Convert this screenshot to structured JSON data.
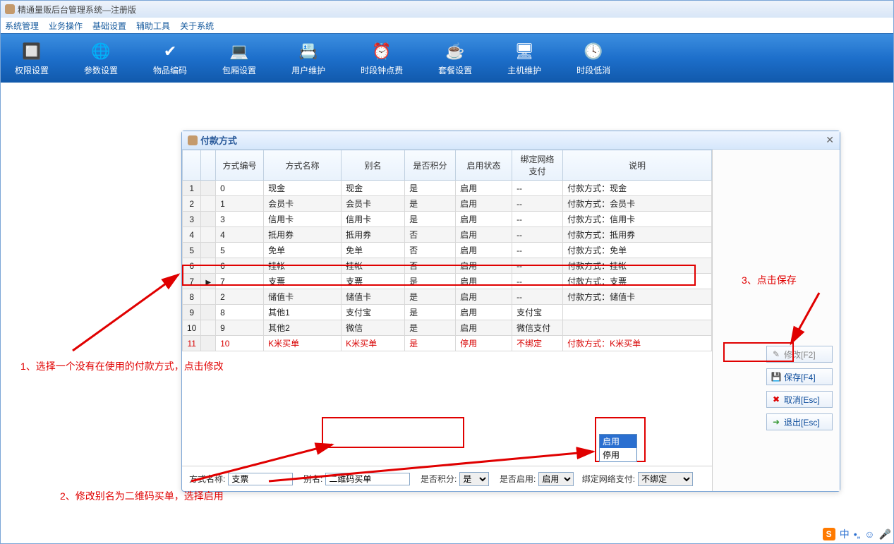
{
  "window": {
    "title": "精通量贩后台管理系统—注册版"
  },
  "menu": [
    "系统管理",
    "业务操作",
    "基础设置",
    "辅助工具",
    "关于系统"
  ],
  "toolbar": [
    {
      "label": "权限设置",
      "icon": "🔲",
      "name": "perm"
    },
    {
      "label": "参数设置",
      "icon": "🌐",
      "name": "param"
    },
    {
      "label": "物品编码",
      "icon": "✔",
      "name": "itemcode"
    },
    {
      "label": "包厢设置",
      "icon": "💻",
      "name": "room"
    },
    {
      "label": "用户维护",
      "icon": "📇",
      "name": "user"
    },
    {
      "label": "时段钟点费",
      "icon": "⏰",
      "name": "timefee"
    },
    {
      "label": "套餐设置",
      "icon": "☕",
      "name": "package"
    },
    {
      "label": "主机维护",
      "icon": "🖥",
      "name": "host"
    },
    {
      "label": "时段低消",
      "icon": "🕓",
      "name": "timemin"
    }
  ],
  "modal": {
    "title": "付款方式",
    "columns": [
      "方式编号",
      "方式名称",
      "别名",
      "是否积分",
      "启用状态",
      "绑定网络支付",
      "说明"
    ],
    "rows": [
      {
        "n": 1,
        "id": "0",
        "name": "现金",
        "alias": "现金",
        "jf": "是",
        "st": "启用",
        "net": "--",
        "desc": "付款方式：现金"
      },
      {
        "n": 2,
        "id": "1",
        "name": "会员卡",
        "alias": "会员卡",
        "jf": "是",
        "st": "启用",
        "net": "--",
        "desc": "付款方式：会员卡"
      },
      {
        "n": 3,
        "id": "3",
        "name": "信用卡",
        "alias": "信用卡",
        "jf": "是",
        "st": "启用",
        "net": "--",
        "desc": "付款方式：信用卡"
      },
      {
        "n": 4,
        "id": "4",
        "name": "抵用券",
        "alias": "抵用券",
        "jf": "否",
        "st": "启用",
        "net": "--",
        "desc": "付款方式：抵用券"
      },
      {
        "n": 5,
        "id": "5",
        "name": "免单",
        "alias": "免单",
        "jf": "否",
        "st": "启用",
        "net": "--",
        "desc": "付款方式：免单"
      },
      {
        "n": 6,
        "id": "6",
        "name": "挂帐",
        "alias": "挂帐",
        "jf": "否",
        "st": "启用",
        "net": "--",
        "desc": "付款方式：挂帐"
      },
      {
        "n": 7,
        "id": "7",
        "name": "支票",
        "alias": "支票",
        "jf": "是",
        "st": "启用",
        "net": "--",
        "desc": "付款方式：支票",
        "sel": true
      },
      {
        "n": 8,
        "id": "2",
        "name": "储值卡",
        "alias": "储值卡",
        "jf": "是",
        "st": "启用",
        "net": "--",
        "desc": "付款方式：储值卡"
      },
      {
        "n": 9,
        "id": "8",
        "name": "其他1",
        "alias": "支付宝",
        "jf": "是",
        "st": "启用",
        "net": "支付宝",
        "desc": ""
      },
      {
        "n": 10,
        "id": "9",
        "name": "其他2",
        "alias": "微信",
        "jf": "是",
        "st": "启用",
        "net": "微信支付",
        "desc": ""
      },
      {
        "n": 11,
        "id": "10",
        "name": "K米买单",
        "alias": "K米买单",
        "jf": "是",
        "st": "停用",
        "net": "不绑定",
        "desc": "付款方式：K米买单",
        "red": true
      }
    ],
    "form": {
      "name_label": "方式名称:",
      "name_value": "支票",
      "alias_label": "别名:",
      "alias_value": "二维码买单",
      "jf_label": "是否积分:",
      "jf_value": "是",
      "enable_label": "是否启用:",
      "enable_value": "启用",
      "enable_opts": [
        "启用",
        "停用"
      ],
      "net_label": "绑定网络支付:",
      "net_value": "不绑定"
    },
    "buttons": {
      "modify": "修改[F2]",
      "save": "保存[F4]",
      "cancel": "取消[Esc]",
      "exit": "退出[Esc]"
    }
  },
  "annotations": {
    "step1": "1、选择一个没有在使用的付款方式，点击修改",
    "step2": "2、修改别名为二维码买单，选择启用",
    "step3": "3、点击保存"
  },
  "tray": {
    "ime": "中"
  }
}
